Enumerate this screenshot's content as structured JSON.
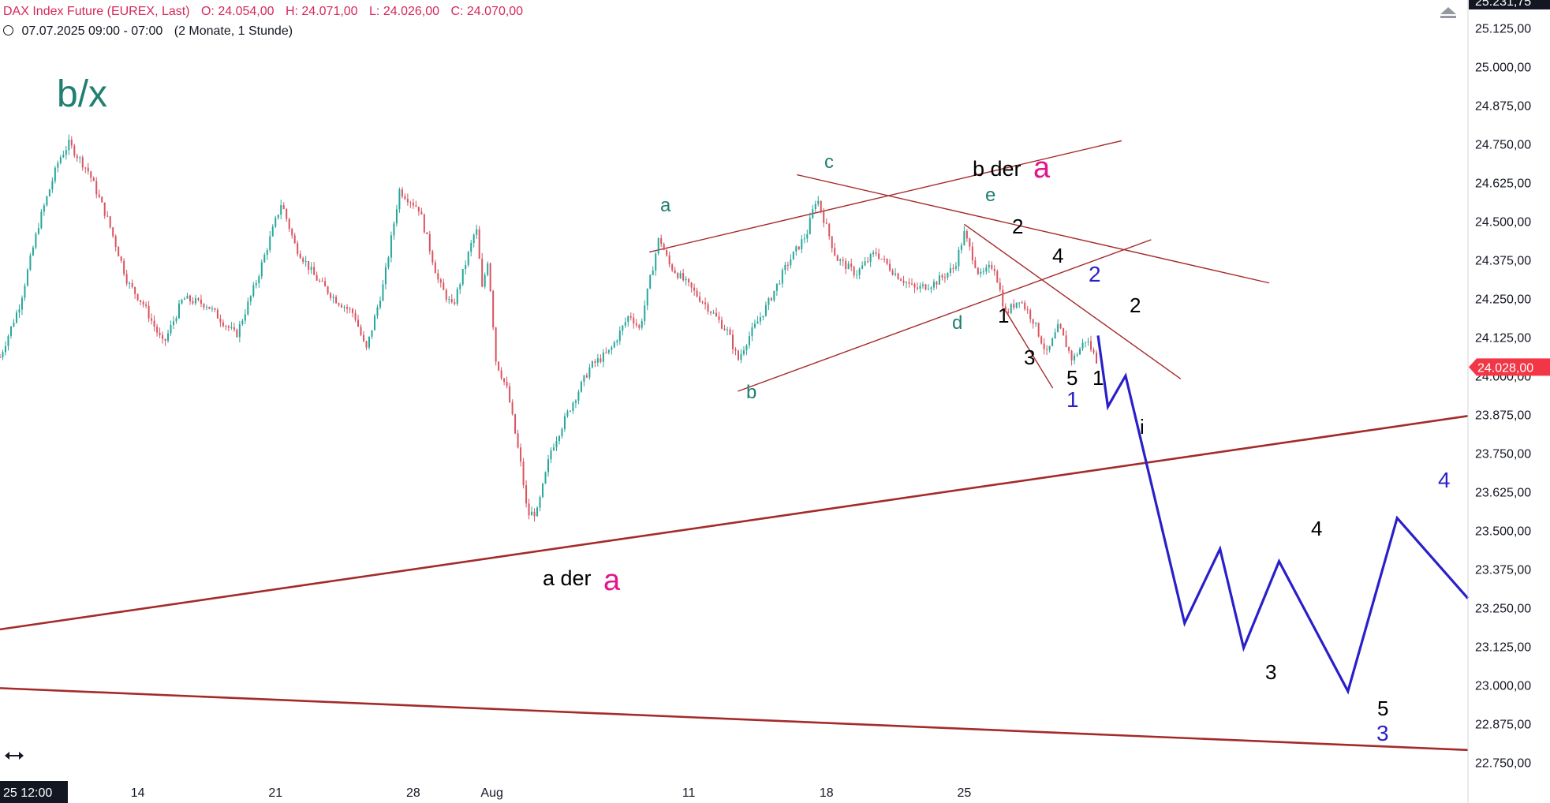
{
  "header": {
    "symbol": "DAX Index Future (EUREX, Last)",
    "open": "O: 24.054,00",
    "high": "H: 24.071,00",
    "low": "L: 24.026,00",
    "close": "C: 24.070,00",
    "range_text": "07.07.2025 09:00 - 07:00",
    "interval_text": "(2 Monate, 1 Stunde)"
  },
  "colors": {
    "up": "#26a69a",
    "down": "#d9535f",
    "trend": "#a52a2a",
    "projection": "#2a1fc9",
    "teal_label": "#1f7f70",
    "magenta": "#e0168b",
    "price_tag": "#f23645"
  },
  "chart_data": {
    "type": "candlestick",
    "title": "DAX Index Future (EUREX, Last)",
    "y_axis": {
      "ticks": [
        "25.125,00",
        "25.000,00",
        "24.875,00",
        "24.750,00",
        "24.625,00",
        "24.500,00",
        "24.375,00",
        "24.250,00",
        "24.125,00",
        "24.000,00",
        "23.875,00",
        "23.750,00",
        "23.625,00",
        "23.500,00",
        "23.375,00",
        "23.250,00",
        "23.125,00",
        "23.000,00",
        "22.875,00",
        "22.750,00"
      ],
      "tick_values": [
        25125,
        25000,
        24875,
        24750,
        24625,
        24500,
        24375,
        24250,
        24125,
        24000,
        23875,
        23750,
        23625,
        23500,
        23375,
        23250,
        23125,
        23000,
        22875,
        22750
      ],
      "top_label": "25.231,75",
      "ylim": [
        22690,
        25215
      ]
    },
    "last_price": {
      "value": 24028,
      "label": "24.028,00"
    },
    "x_axis": {
      "ticks": [
        {
          "label": "14",
          "day": 14
        },
        {
          "label": "21",
          "day": 21
        },
        {
          "label": "28",
          "day": 28
        },
        {
          "label": "Aug",
          "day": 32
        },
        {
          "label": "11",
          "day": 42
        },
        {
          "label": "18",
          "day": 49
        },
        {
          "label": "25",
          "day": 56
        }
      ],
      "cursor_label": "25 12:00",
      "xlim": [
        7.0,
        81.6
      ]
    },
    "price_path": [
      [
        7.0,
        24060
      ],
      [
        8.0,
        24230
      ],
      [
        9.0,
        24500
      ],
      [
        10.0,
        24700
      ],
      [
        10.5,
        24750
      ],
      [
        11.5,
        24660
      ],
      [
        12.5,
        24500
      ],
      [
        13.5,
        24300
      ],
      [
        14.3,
        24230
      ],
      [
        15.3,
        24100
      ],
      [
        16.3,
        24250
      ],
      [
        17.5,
        24230
      ],
      [
        19.0,
        24130
      ],
      [
        20.0,
        24300
      ],
      [
        21.3,
        24560
      ],
      [
        22.0,
        24420
      ],
      [
        23.0,
        24320
      ],
      [
        24.0,
        24250
      ],
      [
        25.0,
        24200
      ],
      [
        25.6,
        24080
      ],
      [
        26.5,
        24300
      ],
      [
        27.3,
        24600
      ],
      [
        28.3,
        24540
      ],
      [
        29.3,
        24300
      ],
      [
        30.0,
        24220
      ],
      [
        31.2,
        24480
      ],
      [
        31.5,
        24280
      ],
      [
        31.8,
        24380
      ],
      [
        32.2,
        24050
      ],
      [
        32.8,
        23950
      ],
      [
        33.5,
        23700
      ],
      [
        33.8,
        23550
      ],
      [
        34.3,
        23560
      ],
      [
        35.0,
        23760
      ],
      [
        36.0,
        23900
      ],
      [
        37.0,
        24030
      ],
      [
        38.0,
        24080
      ],
      [
        39.0,
        24200
      ],
      [
        39.5,
        24150
      ],
      [
        40.5,
        24450
      ],
      [
        41.0,
        24360
      ],
      [
        42.0,
        24290
      ],
      [
        43.0,
        24220
      ],
      [
        44.0,
        24140
      ],
      [
        44.5,
        24050
      ],
      [
        45.0,
        24120
      ],
      [
        46.0,
        24230
      ],
      [
        47.0,
        24360
      ],
      [
        48.0,
        24460
      ],
      [
        48.5,
        24580
      ],
      [
        49.5,
        24380
      ],
      [
        50.5,
        24330
      ],
      [
        51.5,
        24400
      ],
      [
        52.5,
        24330
      ],
      [
        53.5,
        24280
      ],
      [
        54.5,
        24300
      ],
      [
        55.5,
        24350
      ],
      [
        56.0,
        24460
      ],
      [
        56.8,
        24320
      ],
      [
        57.5,
        24360
      ],
      [
        58.1,
        24200
      ],
      [
        58.8,
        24250
      ],
      [
        59.5,
        24180
      ],
      [
        60.2,
        24070
      ],
      [
        60.8,
        24160
      ],
      [
        61.5,
        24050
      ],
      [
        62.2,
        24120
      ],
      [
        62.8,
        24040
      ]
    ],
    "projection": [
      [
        62.8,
        24130
      ],
      [
        63.3,
        23900
      ],
      [
        64.2,
        24000
      ],
      [
        67.2,
        23200
      ],
      [
        69.0,
        23440
      ],
      [
        70.2,
        23120
      ],
      [
        72.0,
        23400
      ],
      [
        75.5,
        22980
      ],
      [
        78.0,
        23540
      ],
      [
        81.6,
        23280
      ]
    ],
    "trend_lines": [
      {
        "from": [
          40.0,
          24400
        ],
        "to": [
          64.0,
          24760
        ]
      },
      {
        "from": [
          44.5,
          23950
        ],
        "to": [
          65.5,
          24440
        ]
      },
      {
        "from": [
          47.5,
          24650
        ],
        "to": [
          71.5,
          24300
        ]
      },
      {
        "from": [
          56.0,
          24490
        ],
        "to": [
          67.0,
          23990
        ]
      },
      {
        "from": [
          58.1,
          24210
        ],
        "to": [
          60.5,
          23960
        ]
      },
      {
        "from": [
          7.0,
          23180
        ],
        "to": [
          81.6,
          23870
        ]
      },
      {
        "from": [
          7.0,
          22990
        ],
        "to": [
          81.6,
          22790
        ]
      }
    ]
  },
  "annotations": {
    "bx": "b/x",
    "a": "a",
    "b": "b",
    "c": "c",
    "d": "d",
    "e": "e",
    "b_der": "b der",
    "a_der": "a der",
    "a_big": "a",
    "n1": "1",
    "n2": "2",
    "n3": "3",
    "n4": "4",
    "n5": "5",
    "i": "i",
    "b1": "1",
    "b2": "2",
    "b3": "3",
    "b4": "4"
  }
}
